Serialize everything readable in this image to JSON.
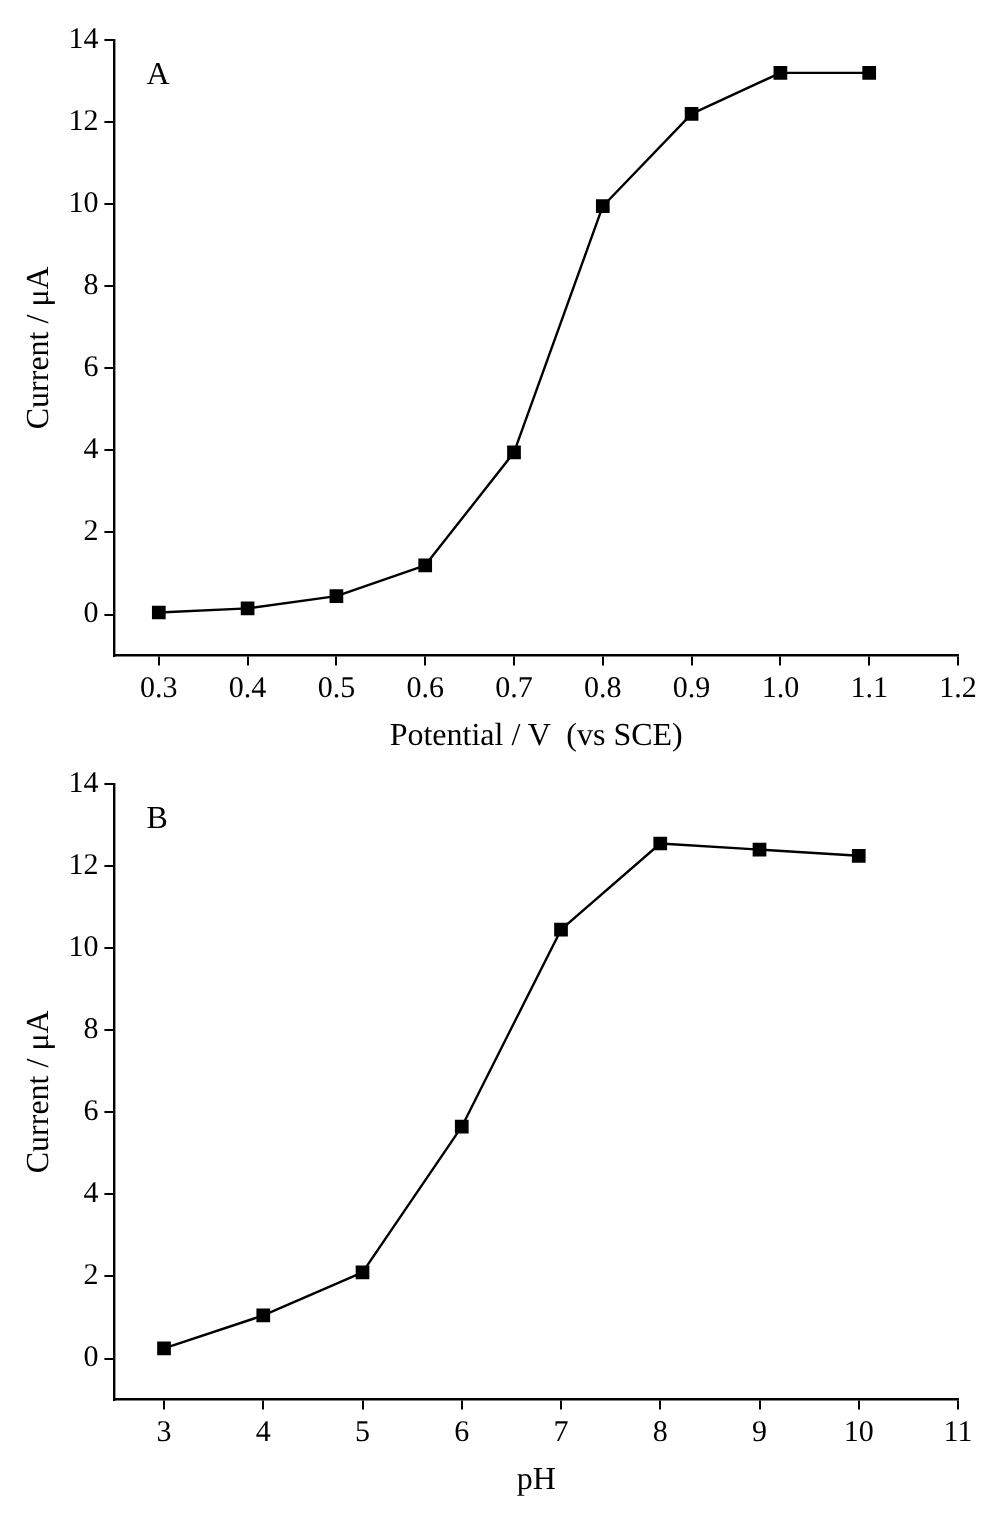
{
  "chart_data": [
    {
      "type": "line",
      "xlabel": "Potential / V  (vs SCE)",
      "ylabel": "Current / μA",
      "annotations": [
        "A"
      ],
      "x": [
        0.3,
        0.4,
        0.5,
        0.6,
        0.7,
        0.8,
        0.9,
        1.0,
        1.1
      ],
      "series": [
        {
          "color": "#000000",
          "values": [
            0.05,
            0.15,
            0.45,
            1.2,
            3.95,
            9.95,
            12.2,
            13.2,
            13.2
          ]
        }
      ],
      "xlim": [
        0.25,
        1.2
      ],
      "xticks": [
        0.3,
        0.4,
        0.5,
        0.6,
        0.7,
        0.8,
        0.9,
        {
          "value": 1.0,
          "label": "1.0"
        },
        1.1,
        1.2
      ],
      "ylim": [
        -1,
        14
      ],
      "yticks": [
        0,
        2,
        4,
        6,
        8,
        10,
        12,
        14
      ],
      "grid": false,
      "legend": false,
      "marker": "square",
      "line_style": "solid"
    },
    {
      "type": "line",
      "xlabel": "pH",
      "ylabel": "Current / μA",
      "annotations": [
        "B"
      ],
      "x": [
        3,
        4,
        5,
        6,
        7,
        8,
        9,
        10
      ],
      "series": [
        {
          "color": "#000000",
          "values": [
            0.25,
            1.05,
            2.1,
            5.65,
            10.45,
            12.55,
            12.4,
            12.25
          ]
        }
      ],
      "xlim": [
        2.5,
        11
      ],
      "xticks": [
        3,
        4,
        5,
        6,
        7,
        8,
        9,
        10,
        11
      ],
      "ylim": [
        -1,
        14
      ],
      "yticks": [
        0,
        2,
        4,
        6,
        8,
        10,
        12,
        14
      ],
      "grid": false,
      "legend": false,
      "marker": "square",
      "line_style": "solid"
    }
  ]
}
